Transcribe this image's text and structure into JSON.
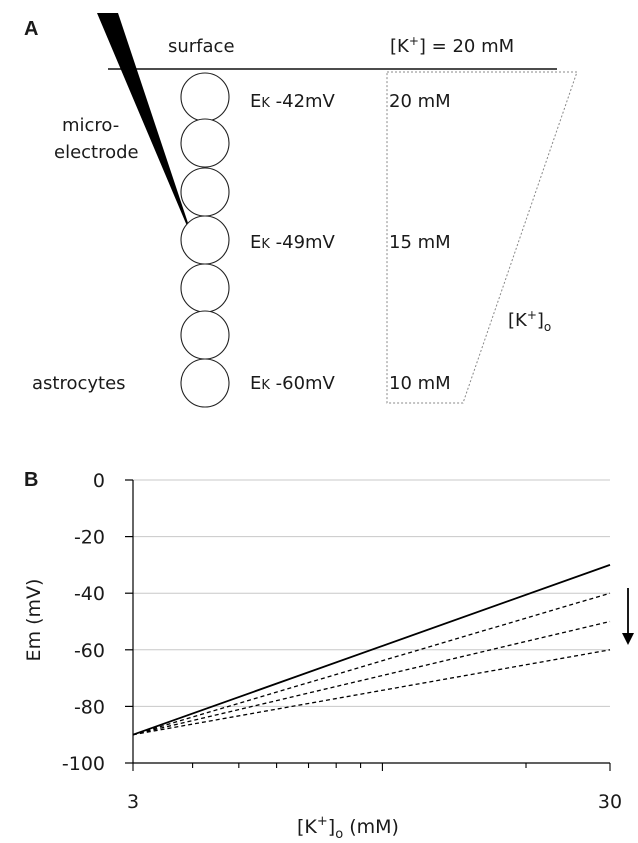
{
  "panel_a": {
    "letter": "A",
    "surface_label": "surface",
    "bath_concentration": {
      "prefix": "[K",
      "sup": "+",
      "suffix": "] = 20 mM"
    },
    "microelectrode_line1": "micro-",
    "microelectrode_line2": "electrode",
    "astrocytes_label": "astrocytes",
    "ek_rows": [
      {
        "symbol": "E",
        "sub": "K",
        "value": " -42mV",
        "concentration": "20 mM"
      },
      {
        "symbol": "E",
        "sub": "K",
        "value": " -49mV",
        "concentration": "15 mM"
      },
      {
        "symbol": "E",
        "sub": "K",
        "value": " -60mV",
        "concentration": "10 mM"
      }
    ],
    "gradient_label": {
      "prefix": "[K",
      "sup": "+",
      "mid": "]",
      "sub": "o"
    }
  },
  "panel_b": {
    "letter": "B"
  },
  "chart_data": {
    "type": "line",
    "x_scale": "log",
    "xlim": [
      3,
      30
    ],
    "ylim": [
      -100,
      0
    ],
    "x_tick_labels": [
      "3",
      "30"
    ],
    "y_tick_labels": [
      "0",
      "-20",
      "-40",
      "-60",
      "-80",
      "-100"
    ],
    "ylabel": "Em (mV)",
    "xlabel": {
      "prefix": "[K",
      "sup": "+",
      "mid": "]",
      "sub": "o",
      "suffix": " (mM)"
    },
    "grid": "horizontal",
    "series": [
      {
        "style": "solid",
        "x": [
          3,
          30
        ],
        "values": [
          -90,
          -30
        ]
      },
      {
        "style": "dashed",
        "x": [
          3,
          30
        ],
        "values": [
          -90,
          -40
        ]
      },
      {
        "style": "dashed",
        "x": [
          3,
          30
        ],
        "values": [
          -90,
          -50
        ]
      },
      {
        "style": "dashed",
        "x": [
          3,
          30
        ],
        "values": [
          -90,
          -60
        ]
      }
    ],
    "annotation": "down-arrow"
  }
}
